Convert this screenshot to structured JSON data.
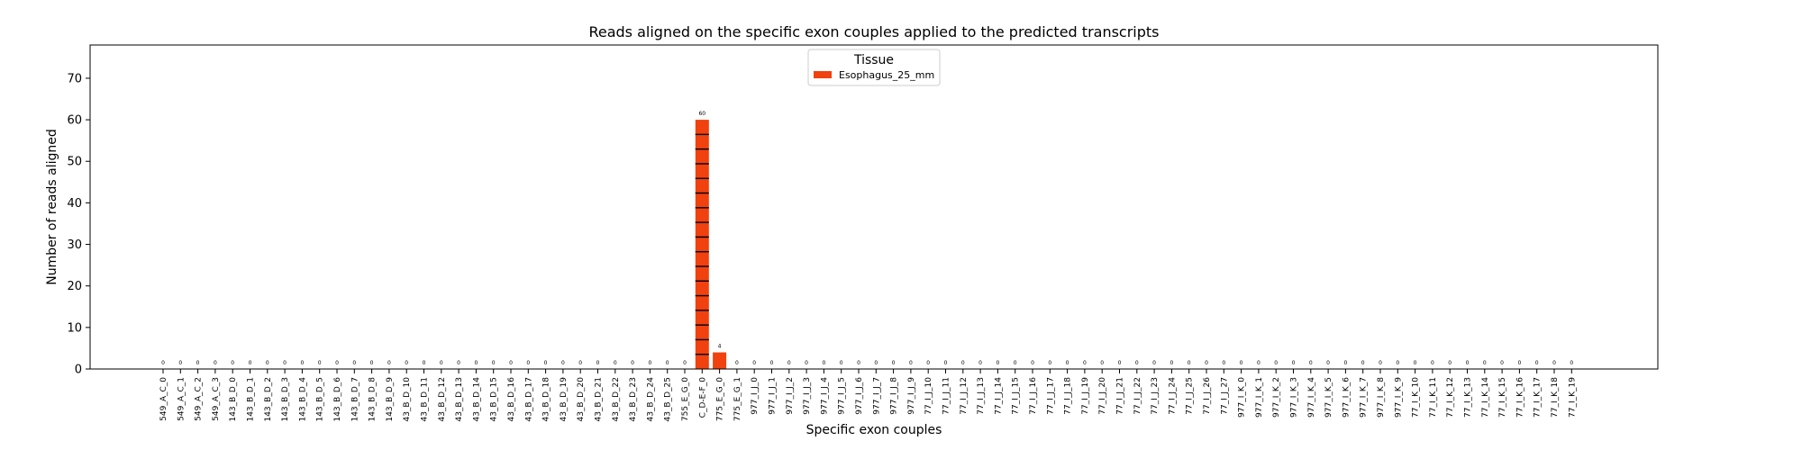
{
  "chart_data": {
    "type": "bar",
    "title": "Reads aligned on the specific exon couples applied to the predicted transcripts",
    "xlabel": "Specific exon couples",
    "ylabel": "Number of reads aligned",
    "ylim": [
      0,
      78
    ],
    "yticks": [
      0,
      10,
      20,
      30,
      40,
      50,
      60,
      70
    ],
    "grid": false,
    "legend": {
      "title": "Tissue",
      "placement": "top-center"
    },
    "bar_color": "#f0410f",
    "categories": [
      "549_A_C_0",
      "549_A_C_1",
      "549_A_C_2",
      "549_A_C_3",
      "143_B_D_0",
      "143_B_D_1",
      "143_B_D_2",
      "143_B_D_3",
      "143_B_D_4",
      "143_B_D_5",
      "143_B_D_6",
      "143_B_D_7",
      "143_B_D_8",
      "143_B_D_9",
      "43_B_D_10",
      "43_B_D_11",
      "43_B_D_12",
      "43_B_D_13",
      "43_B_D_14",
      "43_B_D_15",
      "43_B_D_16",
      "43_B_D_17",
      "43_B_D_18",
      "43_B_D_19",
      "43_B_D_20",
      "43_B_D_21",
      "43_B_D_22",
      "43_B_D_23",
      "43_B_D_24",
      "43_B_D_25",
      "755_E_G_0",
      "C_D-E-F_0",
      "775_E_G_0",
      "775_E_G_1",
      "977_I_J_0",
      "977_I_J_1",
      "977_I_J_2",
      "977_I_J_3",
      "977_I_J_4",
      "977_I_J_5",
      "977_I_J_6",
      "977_I_J_7",
      "977_I_J_8",
      "977_I_J_9",
      "77_I_J_10",
      "77_I_J_11",
      "77_I_J_12",
      "77_I_J_13",
      "77_I_J_14",
      "77_I_J_15",
      "77_I_J_16",
      "77_I_J_17",
      "77_I_J_18",
      "77_I_J_19",
      "77_I_J_20",
      "77_I_J_21",
      "77_I_J_22",
      "77_I_J_23",
      "77_I_J_24",
      "77_I_J_25",
      "77_I_J_26",
      "77_I_J_27",
      "977_I_K_0",
      "977_I_K_1",
      "977_I_K_2",
      "977_I_K_3",
      "977_I_K_4",
      "977_I_K_5",
      "977_I_K_6",
      "977_I_K_7",
      "977_I_K_8",
      "977_I_K_9",
      "77_I_K_10",
      "77_I_K_11",
      "77_I_K_12",
      "77_I_K_13",
      "77_I_K_14",
      "77_I_K_15",
      "77_I_K_16",
      "77_I_K_17",
      "77_I_K_18",
      "77_I_K_19"
    ],
    "series": [
      {
        "name": "Esophagus_25_mm",
        "values": [
          0,
          0,
          0,
          0,
          0,
          0,
          0,
          0,
          0,
          0,
          0,
          0,
          0,
          0,
          0,
          0,
          0,
          0,
          0,
          0,
          0,
          0,
          0,
          0,
          0,
          0,
          0,
          0,
          0,
          0,
          0,
          60,
          4,
          0,
          0,
          0,
          0,
          0,
          0,
          0,
          0,
          0,
          0,
          0,
          0,
          0,
          0,
          0,
          0,
          0,
          0,
          0,
          0,
          0,
          0,
          0,
          0,
          0,
          0,
          0,
          0,
          0,
          0,
          0,
          0,
          0,
          0,
          0,
          0,
          0,
          0,
          0,
          0,
          0,
          0,
          0,
          0,
          0,
          0,
          0,
          0,
          0
        ]
      }
    ]
  }
}
